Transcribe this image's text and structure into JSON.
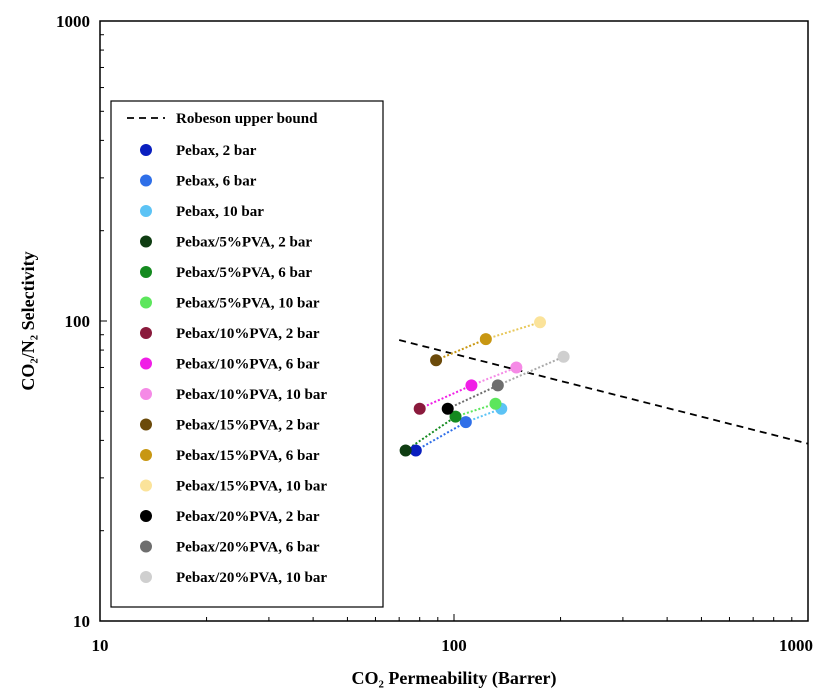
{
  "chart_data": {
    "type": "scatter",
    "title": "",
    "xlabel": "CO₂ Permeability (Barrer)",
    "ylabel": "CO₂/N₂ Selectivity",
    "xscale": "log",
    "yscale": "log",
    "xlim": [
      10,
      1000
    ],
    "ylim": [
      10,
      1000
    ],
    "x_ticks": [
      "10",
      "100",
      "1000"
    ],
    "y_ticks": [
      "10",
      "100",
      "1000"
    ],
    "grid": false,
    "legend_position": "left",
    "upper_bound": {
      "name": "Robeson upper bound",
      "x": [
        70,
        1000
      ],
      "y": [
        86.4,
        39.0
      ]
    },
    "series": [
      {
        "name": "Pebax, 2 bar",
        "color": "#0a1fbf",
        "x": 78,
        "y": 37
      },
      {
        "name": "Pebax, 6 bar",
        "color": "#2f6fe8",
        "x": 108,
        "y": 46
      },
      {
        "name": "Pebax, 10 bar",
        "color": "#5cc3f5",
        "x": 136,
        "y": 51
      },
      {
        "name": "Pebax/5%PVA, 2 bar",
        "color": "#0f3d12",
        "x": 73,
        "y": 37
      },
      {
        "name": "Pebax/5%PVA, 6 bar",
        "color": "#148a1f",
        "x": 101,
        "y": 48
      },
      {
        "name": "Pebax/5%PVA, 10 bar",
        "color": "#5ce65c",
        "x": 131,
        "y": 53
      },
      {
        "name": "Pebax/10%PVA, 2 bar",
        "color": "#8a1a3c",
        "x": 80,
        "y": 51
      },
      {
        "name": "Pebax/10%PVA, 6 bar",
        "color": "#f01ee6",
        "x": 112,
        "y": 61
      },
      {
        "name": "Pebax/10%PVA, 10 bar",
        "color": "#f58ae6",
        "x": 150,
        "y": 70
      },
      {
        "name": "Pebax/15%PVA, 2 bar",
        "color": "#6b4a0a",
        "x": 89,
        "y": 74
      },
      {
        "name": "Pebax/15%PVA, 6 bar",
        "color": "#c89712",
        "x": 123,
        "y": 87
      },
      {
        "name": "Pebax/15%PVA, 10 bar",
        "color": "#fbe39a",
        "x": 175,
        "y": 99
      },
      {
        "name": "Pebax/20%PVA, 2 bar",
        "color": "#000000",
        "x": 96,
        "y": 51
      },
      {
        "name": "Pebax/20%PVA, 6 bar",
        "color": "#6e6e6e",
        "x": 133,
        "y": 61
      },
      {
        "name": "Pebax/20%PVA, 10 bar",
        "color": "#cfcfcf",
        "x": 204,
        "y": 76
      }
    ],
    "connectors": [
      {
        "from": 0,
        "to": 1,
        "color": "#2f6fe8"
      },
      {
        "from": 1,
        "to": 2,
        "color": "#5cc3f5"
      },
      {
        "from": 3,
        "to": 4,
        "color": "#148a1f"
      },
      {
        "from": 4,
        "to": 5,
        "color": "#5ce65c"
      },
      {
        "from": 6,
        "to": 7,
        "color": "#f01ee6"
      },
      {
        "from": 7,
        "to": 8,
        "color": "#f58ae6"
      },
      {
        "from": 9,
        "to": 10,
        "color": "#c89712"
      },
      {
        "from": 10,
        "to": 11,
        "color": "#e8c85a"
      },
      {
        "from": 12,
        "to": 13,
        "color": "#6e6e6e"
      },
      {
        "from": 13,
        "to": 14,
        "color": "#aaaaaa"
      }
    ]
  }
}
